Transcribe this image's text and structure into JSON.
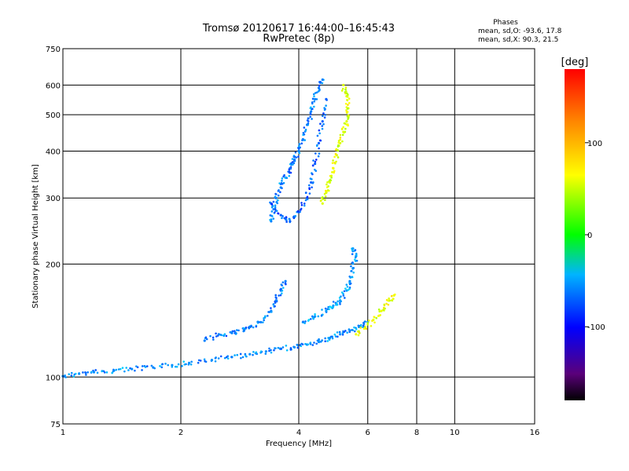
{
  "chart_data": {
    "type": "scatter",
    "title": "Tromsø 20120617 16:44:00–16:45:43",
    "subtitle": "RwPretec (8p)",
    "xlabel": "Frequency [MHz]",
    "ylabel": "Stationary phase Virtual Height [km]",
    "xscale": "log",
    "yscale": "log",
    "xlim": [
      1,
      16
    ],
    "ylim": [
      75,
      750
    ],
    "xticks": [
      1,
      2,
      4,
      6,
      8,
      10,
      16
    ],
    "yticks": [
      75,
      100,
      200,
      300,
      400,
      500,
      600,
      750
    ],
    "grid": true,
    "phase_stats": {
      "heading": "Phases",
      "line_o": "mean, sd,O:  -93.6, 17.8",
      "line_x": "mean, sd,X:  90.3, 21.5"
    },
    "colorbar": {
      "label": "[deg]",
      "range": [
        -180,
        180
      ],
      "ticks": [
        -100,
        0,
        100
      ],
      "colormap": "rainbow"
    },
    "series": [
      {
        "trace": "o_low",
        "phase": -95,
        "points": [
          [
            1.0,
            100.5
          ],
          [
            1.1,
            102
          ],
          [
            1.2,
            103
          ],
          [
            1.35,
            104
          ],
          [
            1.5,
            105
          ],
          [
            1.7,
            106
          ],
          [
            1.9,
            107.5
          ],
          [
            2.1,
            109
          ],
          [
            2.4,
            111
          ],
          [
            2.7,
            113
          ],
          [
            3.0,
            115
          ],
          [
            3.3,
            117
          ],
          [
            3.6,
            119
          ],
          [
            3.9,
            120
          ],
          [
            4.2,
            122
          ],
          [
            4.5,
            124
          ],
          [
            4.8,
            127
          ],
          [
            5.1,
            130
          ],
          [
            5.4,
            133
          ],
          [
            5.7,
            136
          ],
          [
            6.0,
            140
          ]
        ]
      },
      {
        "trace": "o_lower_step",
        "phase": -100,
        "points": [
          [
            2.3,
            125
          ],
          [
            2.5,
            130
          ],
          [
            2.7,
            131
          ],
          [
            2.9,
            133
          ],
          [
            3.0,
            136
          ],
          [
            3.2,
            140
          ],
          [
            3.4,
            150
          ],
          [
            3.5,
            160
          ],
          [
            3.6,
            170
          ],
          [
            3.7,
            180
          ]
        ]
      },
      {
        "trace": "o_lower_branch",
        "phase": -90,
        "points": [
          [
            4.1,
            140
          ],
          [
            4.4,
            145
          ],
          [
            4.7,
            150
          ],
          [
            4.9,
            155
          ],
          [
            5.1,
            160
          ],
          [
            5.3,
            170
          ],
          [
            5.4,
            180
          ],
          [
            5.5,
            195
          ],
          [
            5.6,
            210
          ],
          [
            5.5,
            220
          ]
        ]
      },
      {
        "trace": "o_upper",
        "phase": -100,
        "points": [
          [
            3.4,
            260
          ],
          [
            3.45,
            280
          ],
          [
            3.5,
            300
          ],
          [
            3.6,
            320
          ],
          [
            3.7,
            340
          ],
          [
            3.8,
            360
          ],
          [
            3.9,
            380
          ],
          [
            4.0,
            400
          ],
          [
            4.1,
            430
          ],
          [
            4.2,
            470
          ],
          [
            4.3,
            510
          ],
          [
            4.4,
            550
          ],
          [
            4.5,
            590
          ],
          [
            4.6,
            620
          ]
        ]
      },
      {
        "trace": "o_upper_inner",
        "phase": -110,
        "points": [
          [
            3.4,
            290
          ],
          [
            3.6,
            270
          ],
          [
            3.8,
            260
          ],
          [
            4.0,
            275
          ],
          [
            4.2,
            300
          ],
          [
            4.3,
            330
          ],
          [
            4.4,
            370
          ],
          [
            4.5,
            420
          ],
          [
            4.6,
            480
          ],
          [
            4.7,
            550
          ]
        ]
      },
      {
        "trace": "x_upper",
        "phase": 90,
        "points": [
          [
            4.6,
            290
          ],
          [
            4.7,
            310
          ],
          [
            4.8,
            330
          ],
          [
            4.9,
            360
          ],
          [
            5.0,
            390
          ],
          [
            5.1,
            420
          ],
          [
            5.2,
            450
          ],
          [
            5.3,
            480
          ],
          [
            5.35,
            520
          ],
          [
            5.3,
            560
          ],
          [
            5.2,
            600
          ]
        ]
      },
      {
        "trace": "x_lower",
        "phase": 95,
        "points": [
          [
            5.6,
            130
          ],
          [
            5.9,
            135
          ],
          [
            6.2,
            142
          ],
          [
            6.5,
            150
          ],
          [
            6.8,
            160
          ],
          [
            7.0,
            165
          ]
        ]
      }
    ]
  }
}
